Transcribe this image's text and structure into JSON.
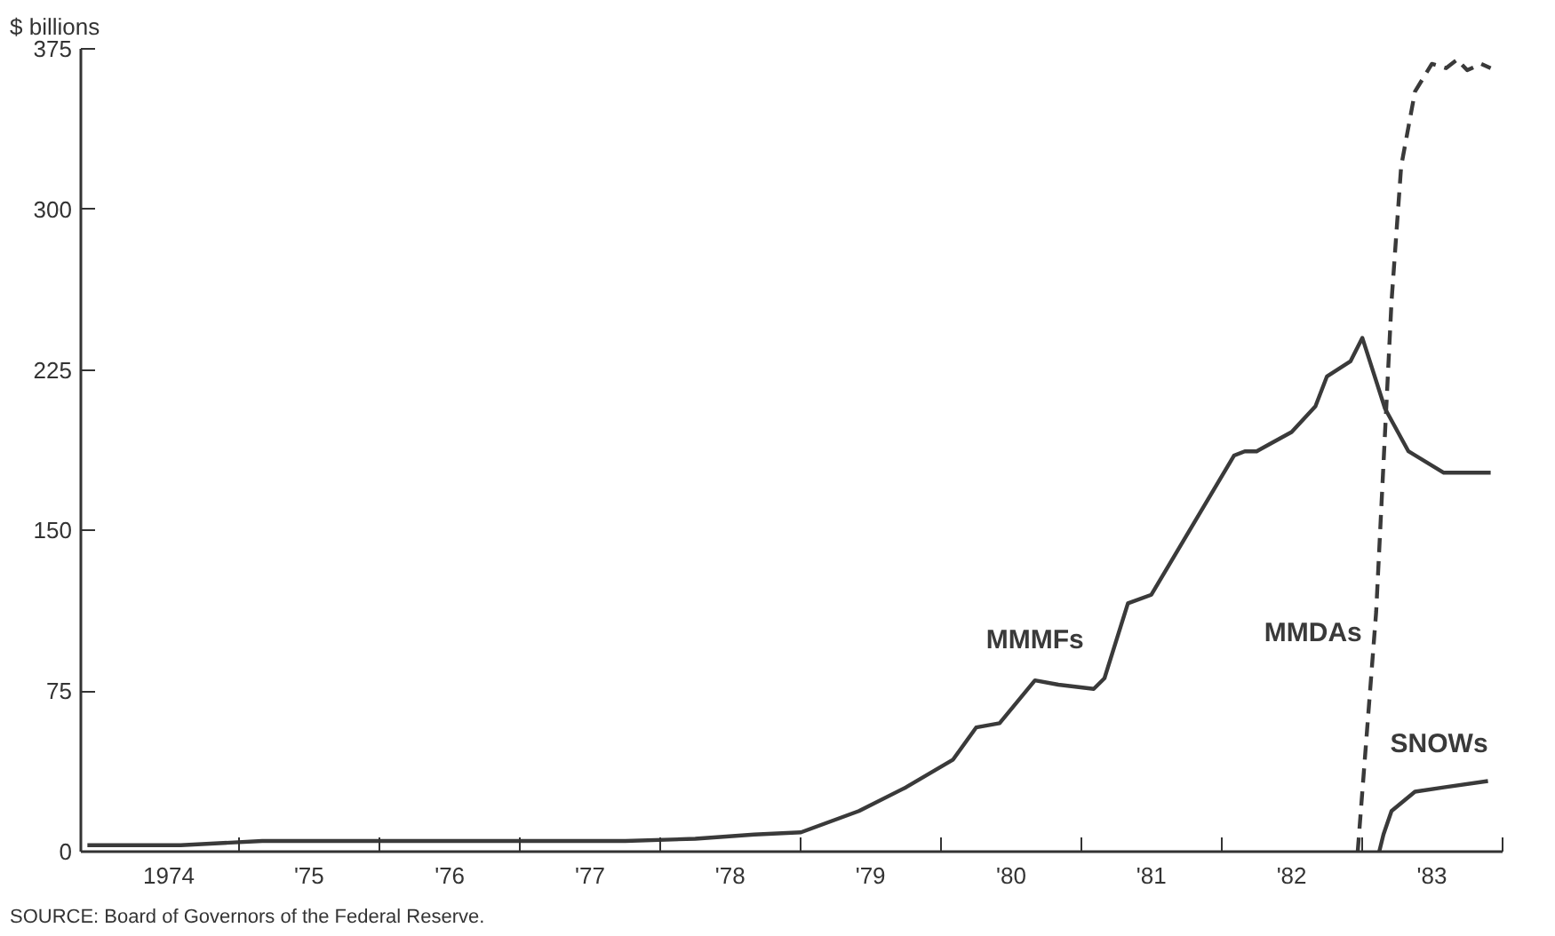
{
  "chart_data": {
    "type": "line",
    "ylabel": "$ billions",
    "xlim": [
      "1973-11-14",
      "1984-01-01"
    ],
    "ylim": [
      0,
      375
    ],
    "yticks": [
      0,
      75,
      150,
      225,
      300,
      375
    ],
    "xticks": [
      {
        "value": "1975-01-01",
        "label": null
      },
      {
        "value": "1976-01-01",
        "label": null
      },
      {
        "value": "1977-01-01",
        "label": null
      },
      {
        "value": "1978-01-01",
        "label": null
      },
      {
        "value": "1979-01-01",
        "label": null
      },
      {
        "value": "1980-01-01",
        "label": null
      },
      {
        "value": "1981-01-01",
        "label": null
      },
      {
        "value": "1982-01-01",
        "label": null
      },
      {
        "value": "1983-01-01",
        "label": null
      },
      {
        "value": "1984-01-01",
        "label": null
      },
      {
        "value": "1974-07-01",
        "label": "1974"
      },
      {
        "value": "1975-07-01",
        "label": "'75"
      },
      {
        "value": "1976-07-01",
        "label": "'76"
      },
      {
        "value": "1977-07-01",
        "label": "'77"
      },
      {
        "value": "1978-07-01",
        "label": "'78"
      },
      {
        "value": "1979-07-01",
        "label": "'79"
      },
      {
        "value": "1980-07-01",
        "label": "'80"
      },
      {
        "value": "1981-07-01",
        "label": "'81"
      },
      {
        "value": "1982-07-01",
        "label": "'82"
      },
      {
        "value": "1983-07-01",
        "label": "'83"
      }
    ],
    "grid": false,
    "series": [
      {
        "name": "MMMFs",
        "color": "#3a3a3a",
        "line_style": "solid",
        "x": [
          "1973-12",
          "1974-08",
          "1975-03",
          "1976-01",
          "1977-01",
          "1977-10",
          "1978-04",
          "1978-09",
          "1979-01",
          "1979-06",
          "1979-10",
          "1980-02",
          "1980-04",
          "1980-06",
          "1980-09",
          "1980-11",
          "1981-02",
          "1981-03",
          "1981-05",
          "1981-07",
          "1982-02",
          "1982-03",
          "1982-04",
          "1982-05",
          "1982-07",
          "1982-09",
          "1982-10",
          "1982-12",
          "1983-01",
          "1983-03",
          "1983-05",
          "1983-08",
          "1983-12"
        ],
        "values": [
          3,
          3,
          5,
          5,
          5,
          5,
          6,
          8,
          9,
          19,
          30,
          43,
          58,
          60,
          80,
          78,
          76,
          81,
          116,
          120,
          185,
          187,
          187,
          190,
          196,
          208,
          222,
          229,
          240,
          207,
          187,
          177,
          177
        ]
      },
      {
        "name": "MMDAs",
        "color": "#3a3a3a",
        "line_style": "dashed",
        "x": [
          "1982-12-20",
          "1983-02-06",
          "1983-03-18",
          "1983-04-12",
          "1983-05-18",
          "1983-07-01",
          "1983-08-07",
          "1983-09-05",
          "1983-10-01",
          "1983-11-06",
          "1983-12-01"
        ],
        "values": [
          0,
          112,
          257,
          320,
          355,
          368,
          366,
          370,
          365,
          368,
          366
        ]
      },
      {
        "name": "SNOWs",
        "color": "#3a3a3a",
        "line_style": "solid",
        "x": [
          "1983-02-14",
          "1983-02-25",
          "1983-03-18",
          "1983-05-18",
          "1983-08-01",
          "1983-11-24"
        ],
        "values": [
          0,
          8,
          19,
          28,
          30,
          33
        ]
      }
    ],
    "annotations": [
      "SOURCE: Board of Governors of the Federal Reserve."
    ]
  }
}
